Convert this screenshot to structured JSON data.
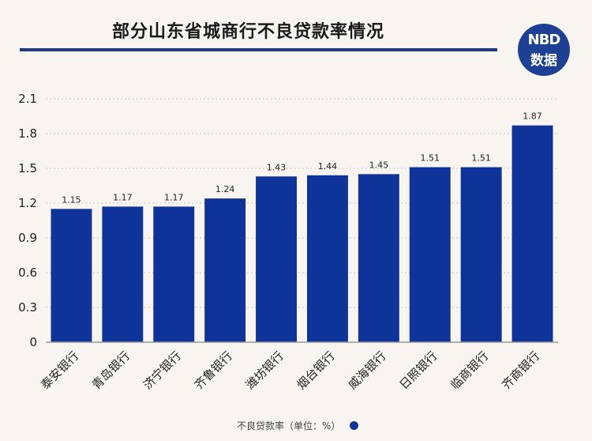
{
  "header": {
    "title": "部分山东省城商行不良贷款率情况",
    "logo_top": "NBD",
    "logo_bottom": "数据"
  },
  "legend": {
    "label": "不良贷款率（单位：%）"
  },
  "colors": {
    "bar": "#0e3399",
    "accent": "#1c3a8c",
    "grid": "#c9c9c9"
  },
  "chart_data": {
    "type": "bar",
    "categories": [
      "泰安银行",
      "青岛银行",
      "济宁银行",
      "齐鲁银行",
      "潍坊银行",
      "烟台银行",
      "威海银行",
      "日照银行",
      "临商银行",
      "齐商银行"
    ],
    "series": [
      {
        "name": "不良贷款率（单位：%）",
        "values": [
          1.15,
          1.17,
          1.17,
          1.24,
          1.43,
          1.44,
          1.45,
          1.51,
          1.51,
          1.87
        ]
      }
    ],
    "data_labels": [
      "1.15",
      "1.17",
      "1.17",
      "1.24",
      "1.43",
      "1.44",
      "1.45",
      "1.51",
      "1.51",
      "1.87"
    ],
    "yticks": [
      "0",
      "0.3",
      "0.6",
      "0.9",
      "1.2",
      "1.5",
      "1.8",
      "2.1"
    ],
    "ylim": [
      0,
      2.1
    ],
    "grid": true,
    "legend_position": "bottom"
  }
}
